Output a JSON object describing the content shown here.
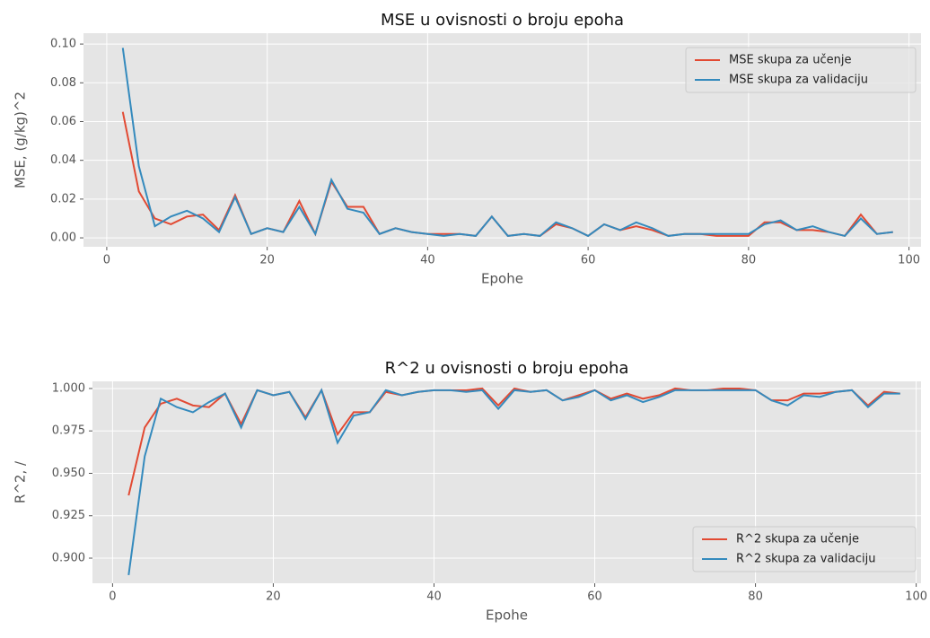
{
  "chart_data": [
    {
      "type": "line",
      "title": "MSE u ovisnosti o broju epoha",
      "xlabel": "Epohe",
      "ylabel": "MSE, (g/kg)^2",
      "x": [
        2,
        4,
        6,
        8,
        10,
        12,
        14,
        16,
        18,
        20,
        22,
        24,
        26,
        28,
        30,
        32,
        34,
        36,
        38,
        40,
        42,
        44,
        46,
        48,
        50,
        52,
        54,
        56,
        58,
        60,
        62,
        64,
        66,
        68,
        70,
        72,
        74,
        76,
        78,
        80,
        82,
        84,
        86,
        88,
        90,
        92,
        94,
        96,
        98
      ],
      "series": [
        {
          "name": "MSE skupa za učenje",
          "color": "#E24A33",
          "values": [
            0.065,
            0.024,
            0.01,
            0.007,
            0.011,
            0.012,
            0.004,
            0.022,
            0.002,
            0.005,
            0.003,
            0.019,
            0.002,
            0.029,
            0.016,
            0.016,
            0.002,
            0.005,
            0.003,
            0.002,
            0.002,
            0.002,
            0.001,
            0.011,
            0.001,
            0.002,
            0.001,
            0.007,
            0.005,
            0.001,
            0.007,
            0.004,
            0.006,
            0.004,
            0.001,
            0.002,
            0.002,
            0.001,
            0.001,
            0.001,
            0.008,
            0.008,
            0.004,
            0.004,
            0.003,
            0.001,
            0.012,
            0.002,
            0.003
          ]
        },
        {
          "name": "MSE skupa za validaciju",
          "color": "#348ABD",
          "values": [
            0.098,
            0.037,
            0.006,
            0.011,
            0.014,
            0.01,
            0.003,
            0.021,
            0.002,
            0.005,
            0.003,
            0.016,
            0.002,
            0.03,
            0.015,
            0.013,
            0.002,
            0.005,
            0.003,
            0.002,
            0.001,
            0.002,
            0.001,
            0.011,
            0.001,
            0.002,
            0.001,
            0.008,
            0.005,
            0.001,
            0.007,
            0.004,
            0.008,
            0.005,
            0.001,
            0.002,
            0.002,
            0.002,
            0.002,
            0.002,
            0.007,
            0.009,
            0.004,
            0.006,
            0.003,
            0.001,
            0.01,
            0.002,
            0.003
          ]
        }
      ],
      "xlim": [
        -2.9,
        101.5
      ],
      "xticks": [
        0,
        20,
        40,
        60,
        80,
        100
      ],
      "ylim": [
        -0.0046,
        0.1056
      ],
      "yticks": [
        {
          "value": 0,
          "label": "0.00"
        },
        0.02,
        0.04,
        0.06,
        0.08,
        {
          "value": 0.1,
          "label": "0.10"
        }
      ],
      "grid": true,
      "legend": "upper right"
    },
    {
      "type": "line",
      "title": "R^2 u ovisnosti o broju epoha",
      "xlabel": "Epohe",
      "ylabel": "R^2, /",
      "x": [
        2,
        4,
        6,
        8,
        10,
        12,
        14,
        16,
        18,
        20,
        22,
        24,
        26,
        28,
        30,
        32,
        34,
        36,
        38,
        40,
        42,
        44,
        46,
        48,
        50,
        52,
        54,
        56,
        58,
        60,
        62,
        64,
        66,
        68,
        70,
        72,
        74,
        76,
        78,
        80,
        82,
        84,
        86,
        88,
        90,
        92,
        94,
        96,
        98
      ],
      "series": [
        {
          "name": "R^2 skupa za učenje",
          "color": "#E24A33",
          "values": [
            0.937,
            0.977,
            0.991,
            0.994,
            0.99,
            0.989,
            0.997,
            0.979,
            0.999,
            0.996,
            0.998,
            0.983,
            0.999,
            0.973,
            0.986,
            0.986,
            0.998,
            0.996,
            0.998,
            0.999,
            0.999,
            0.999,
            1.0,
            0.99,
            1.0,
            0.998,
            0.999,
            0.993,
            0.996,
            0.999,
            0.994,
            0.997,
            0.994,
            0.996,
            1.0,
            0.999,
            0.999,
            1.0,
            1.0,
            0.999,
            0.993,
            0.993,
            0.997,
            0.997,
            0.998,
            0.999,
            0.99,
            0.998,
            0.997
          ]
        },
        {
          "name": "R^2 skupa za validaciju",
          "color": "#348ABD",
          "values": [
            0.89,
            0.96,
            0.994,
            0.989,
            0.986,
            0.992,
            0.997,
            0.977,
            0.999,
            0.996,
            0.998,
            0.982,
            0.999,
            0.968,
            0.984,
            0.986,
            0.999,
            0.996,
            0.998,
            0.999,
            0.999,
            0.998,
            0.999,
            0.988,
            0.999,
            0.998,
            0.999,
            0.993,
            0.995,
            0.999,
            0.993,
            0.996,
            0.992,
            0.995,
            0.999,
            0.999,
            0.999,
            0.999,
            0.999,
            0.999,
            0.993,
            0.99,
            0.996,
            0.995,
            0.998,
            0.999,
            0.989,
            0.997,
            0.997
          ]
        }
      ],
      "xlim": [
        -2.5,
        100.6
      ],
      "xticks": [
        0,
        20,
        40,
        60,
        80,
        100
      ],
      "ylim": [
        0.8852,
        1.0042
      ],
      "yticks": [
        {
          "value": 0.9,
          "label": "0.900"
        },
        0.925,
        {
          "value": 0.95,
          "label": "0.950"
        },
        0.975,
        {
          "value": 1,
          "label": "1.000"
        }
      ],
      "grid": true,
      "legend": "lower right"
    }
  ]
}
